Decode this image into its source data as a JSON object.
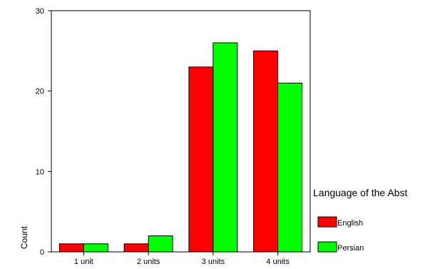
{
  "chart_data": {
    "type": "bar",
    "title": "",
    "xlabel": "",
    "ylabel": "Count",
    "categories": [
      "1 unit",
      "2 units",
      "3 units",
      "4 units"
    ],
    "series": [
      {
        "name": "English",
        "color": "#ff0000",
        "values": [
          1,
          1,
          23,
          25
        ]
      },
      {
        "name": "Persian",
        "color": "#00ff00",
        "values": [
          1,
          2,
          26,
          21
        ]
      }
    ],
    "ylim": [
      0,
      30
    ],
    "yticks": [
      0,
      10,
      20,
      30
    ],
    "grid": false,
    "legend": {
      "title": "Language of the Abst",
      "placement": "right"
    }
  }
}
